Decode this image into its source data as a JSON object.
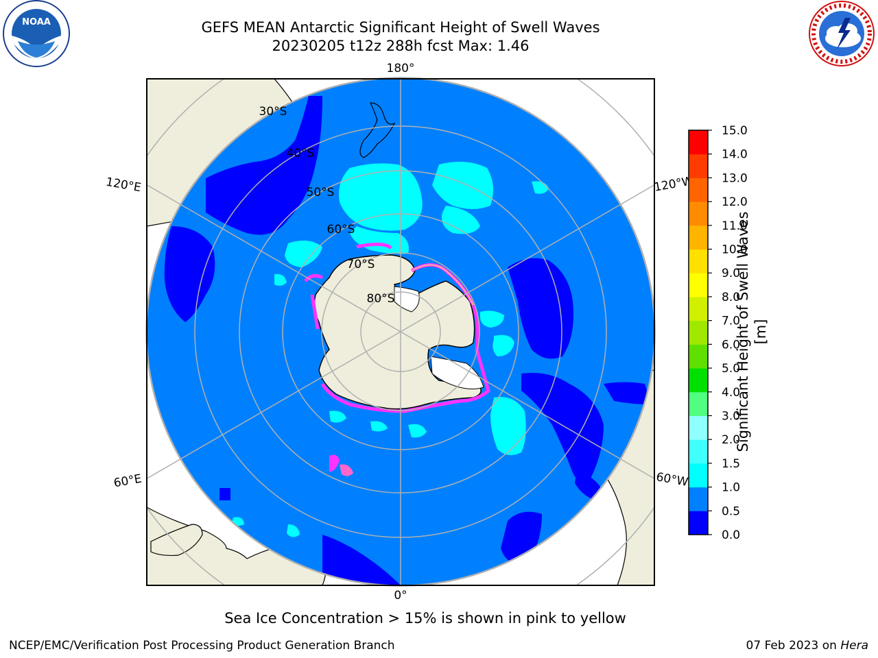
{
  "header": {
    "title_line1": "GEFS MEAN Antarctic Significant Height of Swell Waves",
    "title_line2": "20230205 t12z 288h fcst   Max: 1.46"
  },
  "logos": {
    "noaa": {
      "text": "NOAA",
      "ring_text": "NATIONAL OCEANIC AND ATMOSPHERIC ADMINISTRATION · U.S. DEPARTMENT OF COMMERCE"
    },
    "nws": {
      "ring_text": "NATIONAL WEATHER SERVICE"
    }
  },
  "map": {
    "projection": "south-polar-stereographic",
    "longitude_labels": {
      "top": "180°",
      "bottom": "0°",
      "upper_left": "120°E",
      "upper_right": "120°W",
      "lower_left": "60°E",
      "lower_right": "60°W"
    },
    "latitude_labels": [
      "30°S",
      "40°S",
      "50°S",
      "60°S",
      "70°S",
      "80°S"
    ],
    "colors": {
      "ocean_base": "#0080ff",
      "land": "#efeedc",
      "low_swell": "#0000ff",
      "mid_swell": "#00ffff",
      "sea_ice_edge": "#ff33ff",
      "grid": "#b0b0b0"
    }
  },
  "colorbar": {
    "label": "Significant Height of Swell Waves [m]",
    "ticks": [
      "0.0",
      "0.5",
      "1.0",
      "1.5",
      "2.0",
      "3.0",
      "4.0",
      "5.0",
      "6.0",
      "7.0",
      "8.0",
      "9.0",
      "10.0",
      "11.0",
      "12.0",
      "13.0",
      "14.0",
      "15.0"
    ],
    "colors": [
      "#0000ff",
      "#0080ff",
      "#00ffff",
      "#40ffff",
      "#90ffff",
      "#50ff80",
      "#00e000",
      "#60e000",
      "#a0e800",
      "#d0f000",
      "#ffff00",
      "#ffe000",
      "#ffb400",
      "#ff8c00",
      "#ff6400",
      "#ff3c00",
      "#ff0000"
    ]
  },
  "footer": {
    "note": "Sea Ice Concentration > 15% is shown in pink to yellow",
    "left": "NCEP/EMC/Verification Post Processing Product Generation Branch",
    "right_date": "07 Feb 2023 on ",
    "right_host": "Hera"
  }
}
